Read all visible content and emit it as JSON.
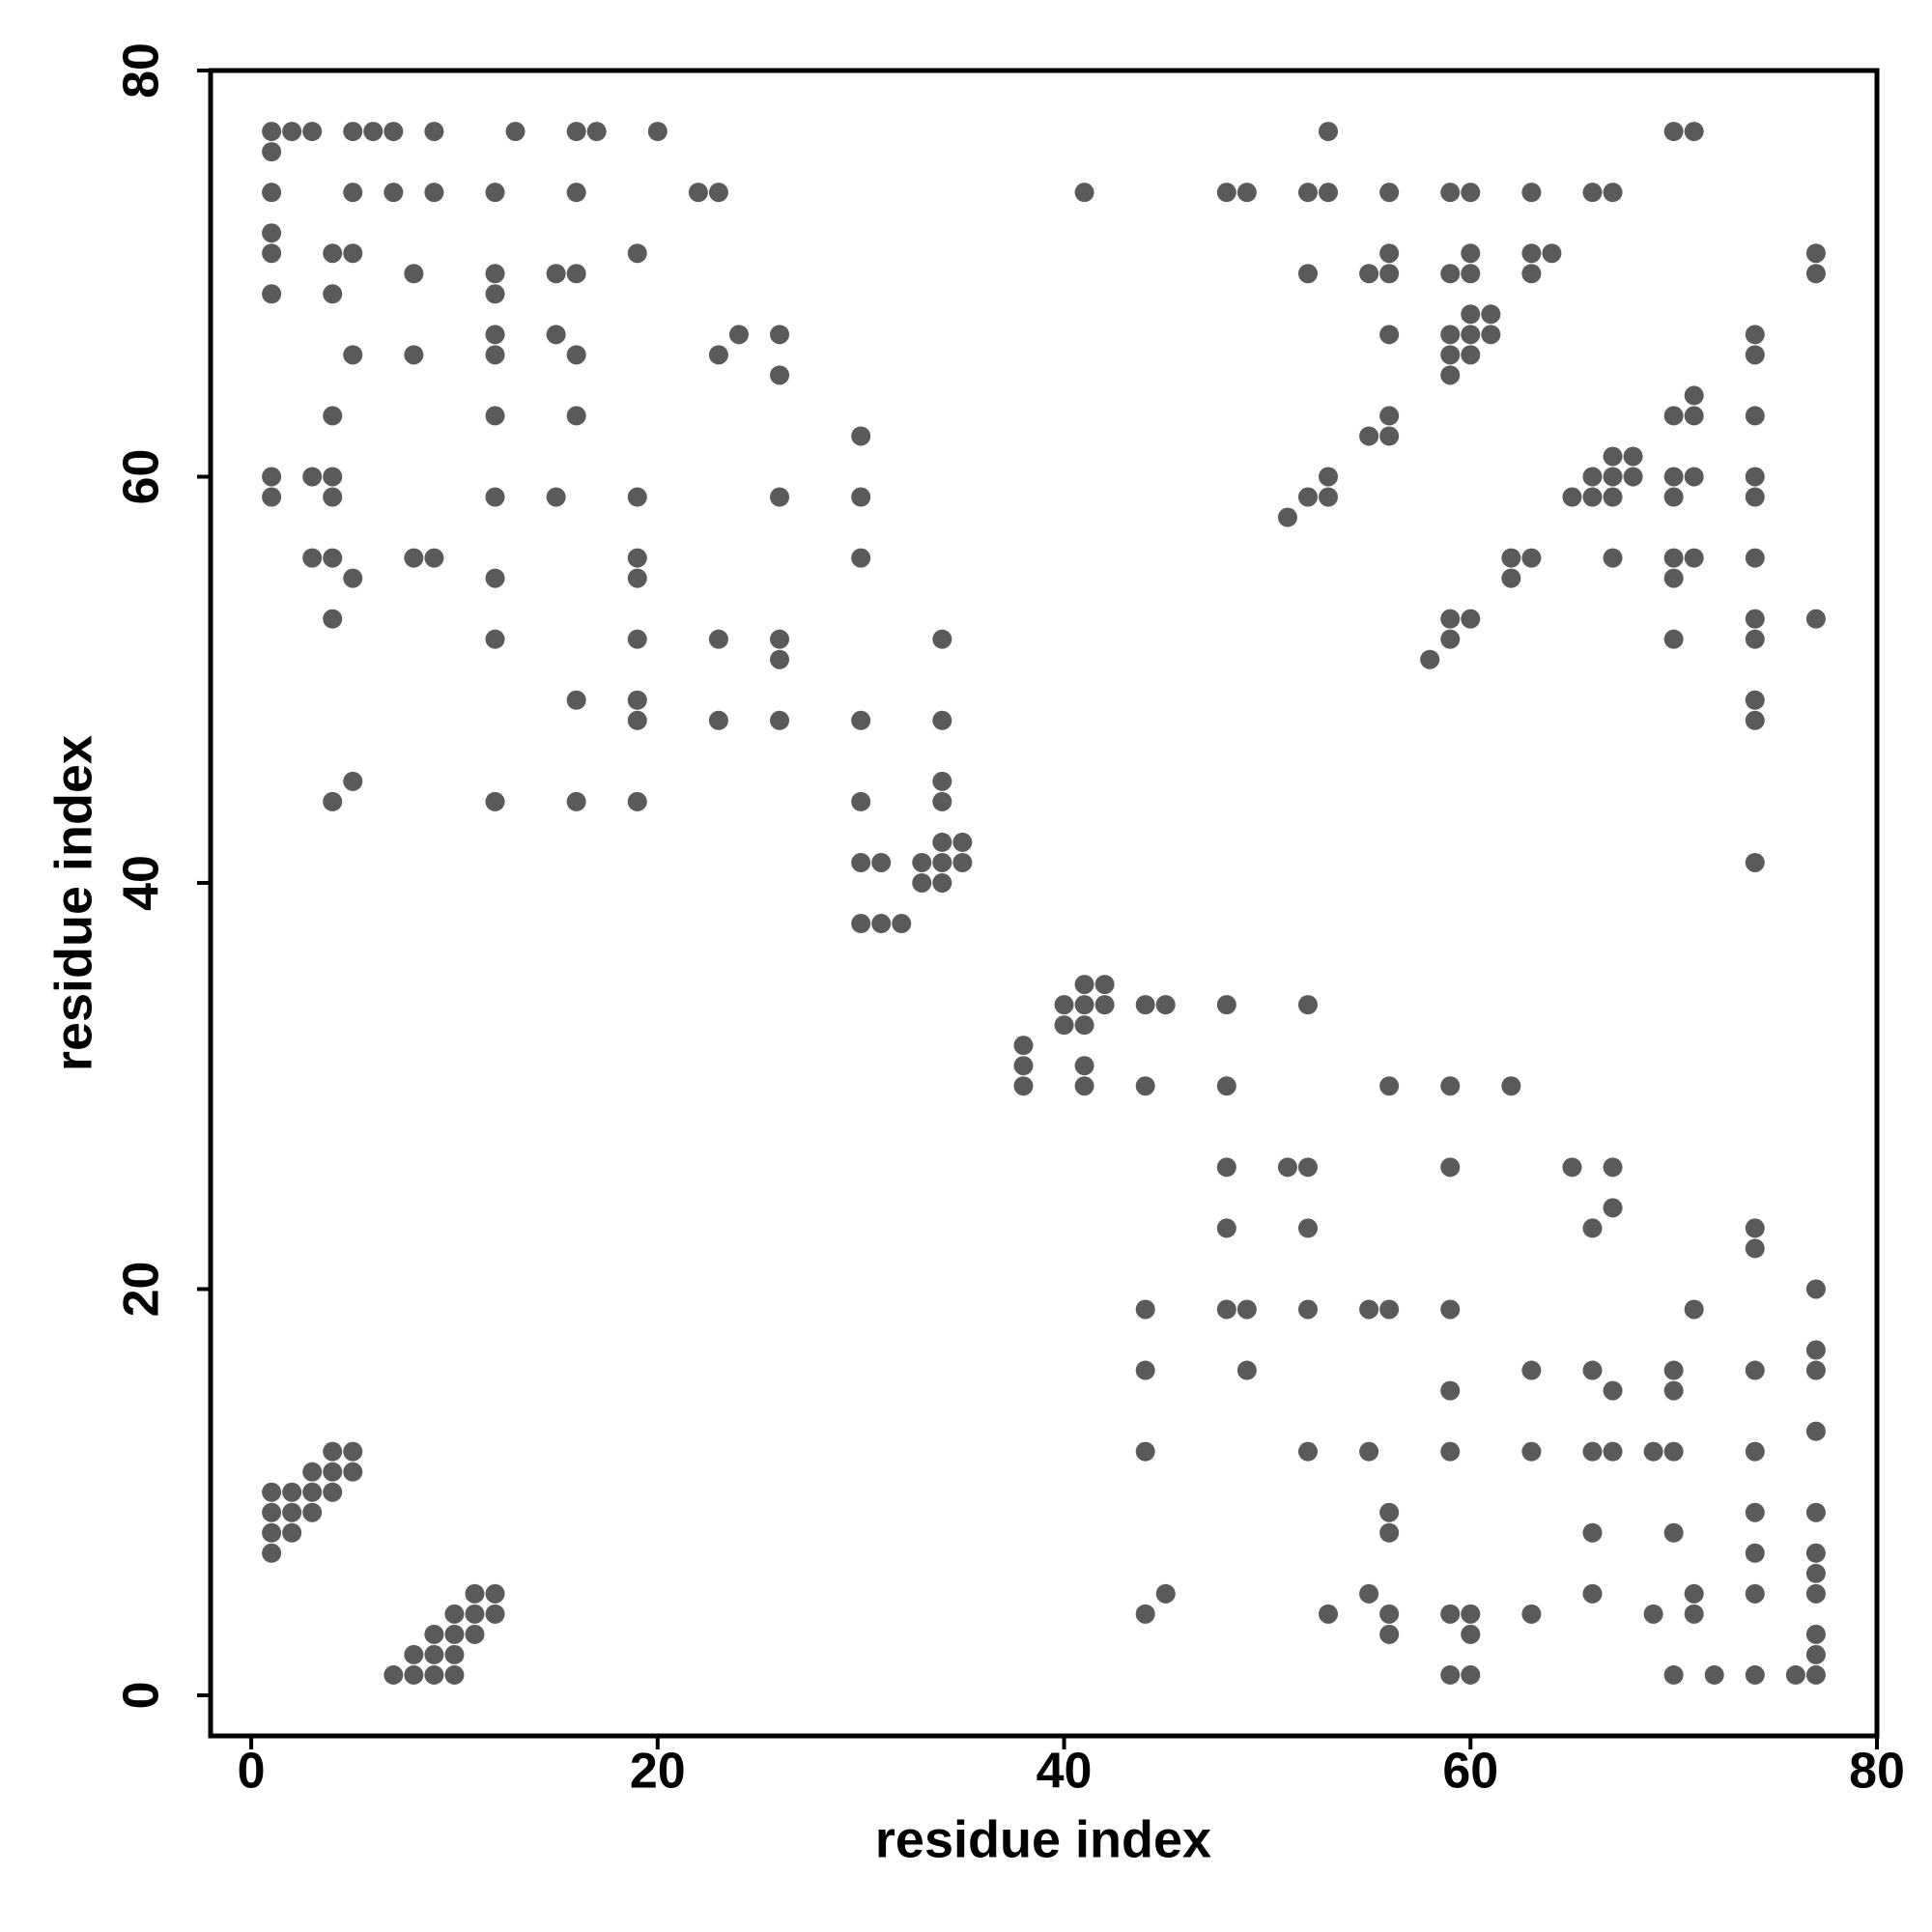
{
  "chart_data": {
    "type": "scatter",
    "x_label": "residue index",
    "y_label": "residue index",
    "xlim": [
      -2,
      80
    ],
    "ylim": [
      -2,
      80
    ],
    "xticks": [
      0,
      20,
      40,
      60,
      80
    ],
    "yticks": [
      0,
      20,
      40,
      60,
      80
    ],
    "color": "#5a5a5a",
    "x": [
      1,
      2,
      3,
      5,
      6,
      7,
      9,
      13,
      16,
      17,
      20,
      53,
      70,
      71,
      1,
      1,
      5,
      7,
      9,
      12,
      16,
      22,
      23,
      41,
      48,
      49,
      52,
      53,
      56,
      59,
      60,
      63,
      66,
      67,
      1,
      1,
      4,
      5,
      19,
      56,
      60,
      63,
      64,
      77,
      8,
      12,
      15,
      16,
      52,
      55,
      56,
      59,
      60,
      63,
      77,
      1,
      4,
      12,
      60,
      61,
      12,
      15,
      24,
      26,
      56,
      59,
      60,
      61,
      74,
      5,
      8,
      12,
      16,
      23,
      59,
      60,
      74,
      26,
      59,
      71,
      4,
      12,
      16,
      56,
      70,
      71,
      74,
      30,
      55,
      56,
      67,
      68,
      1,
      3,
      4,
      53,
      66,
      67,
      68,
      70,
      71,
      74,
      1,
      4,
      12,
      15,
      19,
      26,
      30,
      52,
      53,
      65,
      66,
      67,
      70,
      74,
      51,
      3,
      4,
      8,
      9,
      19,
      30,
      62,
      63,
      67,
      70,
      71,
      74,
      5,
      12,
      19,
      62,
      70,
      4,
      59,
      60,
      74,
      77,
      12,
      19,
      23,
      26,
      34,
      59,
      70,
      74,
      26,
      58,
      16,
      19,
      74,
      19,
      23,
      26,
      30,
      34,
      74,
      5,
      34,
      4,
      12,
      16,
      19,
      30,
      34,
      34,
      35,
      30,
      31,
      33,
      34,
      35,
      74,
      33,
      34,
      30,
      31,
      32,
      41,
      42,
      40,
      41,
      42,
      44,
      45,
      48,
      52,
      40,
      41,
      38,
      38,
      41,
      38,
      41,
      44,
      48,
      56,
      59,
      62,
      48,
      51,
      52,
      59,
      65,
      67,
      67,
      48,
      52,
      66,
      74,
      74,
      77,
      44,
      48,
      49,
      52,
      55,
      56,
      59,
      71,
      77,
      44,
      49,
      63,
      66,
      70,
      74,
      77,
      59,
      67,
      70,
      77,
      4,
      5,
      44,
      52,
      55,
      59,
      63,
      66,
      67,
      69,
      70,
      74,
      3,
      4,
      5,
      1,
      2,
      3,
      4,
      1,
      2,
      3,
      56,
      74,
      77,
      1,
      2,
      56,
      66,
      70,
      1,
      74,
      77,
      77,
      11,
      12,
      45,
      55,
      66,
      71,
      74,
      77,
      10,
      11,
      12,
      44,
      53,
      56,
      59,
      60,
      63,
      69,
      71,
      9,
      10,
      11,
      56,
      60,
      77,
      8,
      9,
      10,
      77,
      7,
      8,
      9,
      10,
      59,
      60,
      70,
      72,
      74,
      76,
      77
    ],
    "values": [
      77,
      77,
      77,
      77,
      77,
      77,
      77,
      77,
      77,
      77,
      77,
      77,
      77,
      77,
      76,
      74,
      74,
      74,
      74,
      74,
      74,
      74,
      74,
      74,
      74,
      74,
      74,
      74,
      74,
      74,
      74,
      74,
      74,
      74,
      72,
      71,
      71,
      71,
      71,
      71,
      71,
      71,
      71,
      71,
      70,
      70,
      70,
      70,
      70,
      70,
      70,
      70,
      70,
      70,
      70,
      69,
      69,
      69,
      68,
      68,
      67,
      67,
      67,
      67,
      67,
      67,
      67,
      67,
      67,
      66,
      66,
      66,
      66,
      66,
      66,
      66,
      66,
      65,
      65,
      64,
      63,
      63,
      63,
      63,
      63,
      63,
      63,
      62,
      62,
      62,
      61,
      61,
      60,
      60,
      60,
      60,
      60,
      60,
      60,
      60,
      60,
      60,
      59,
      59,
      59,
      59,
      59,
      59,
      59,
      59,
      59,
      59,
      59,
      59,
      59,
      59,
      58,
      56,
      56,
      56,
      56,
      56,
      56,
      56,
      56,
      56,
      56,
      56,
      56,
      55,
      55,
      55,
      55,
      55,
      53,
      53,
      53,
      53,
      53,
      52,
      52,
      52,
      52,
      52,
      52,
      52,
      52,
      51,
      51,
      49,
      49,
      49,
      48,
      48,
      48,
      48,
      48,
      48,
      45,
      45,
      44,
      44,
      44,
      44,
      44,
      44,
      42,
      42,
      41,
      41,
      41,
      41,
      41,
      41,
      40,
      40,
      38,
      38,
      38,
      35,
      35,
      34,
      34,
      34,
      34,
      34,
      34,
      34,
      33,
      33,
      32,
      31,
      31,
      30,
      30,
      30,
      30,
      30,
      30,
      30,
      26,
      26,
      26,
      26,
      26,
      26,
      24,
      23,
      23,
      23,
      23,
      22,
      20,
      19,
      19,
      19,
      19,
      19,
      19,
      19,
      19,
      17,
      16,
      16,
      16,
      16,
      16,
      16,
      16,
      15,
      15,
      15,
      13,
      12,
      12,
      12,
      12,
      12,
      12,
      12,
      12,
      12,
      12,
      12,
      12,
      11,
      11,
      11,
      10,
      10,
      10,
      10,
      9,
      9,
      9,
      9,
      9,
      9,
      8,
      8,
      8,
      8,
      8,
      7,
      7,
      7,
      6,
      5,
      5,
      5,
      5,
      5,
      5,
      5,
      5,
      4,
      4,
      4,
      4,
      4,
      4,
      4,
      4,
      4,
      4,
      4,
      3,
      3,
      3,
      3,
      3,
      3,
      2,
      2,
      2,
      2,
      1,
      1,
      1,
      1,
      1,
      1,
      1,
      1,
      1,
      1,
      1
    ]
  }
}
